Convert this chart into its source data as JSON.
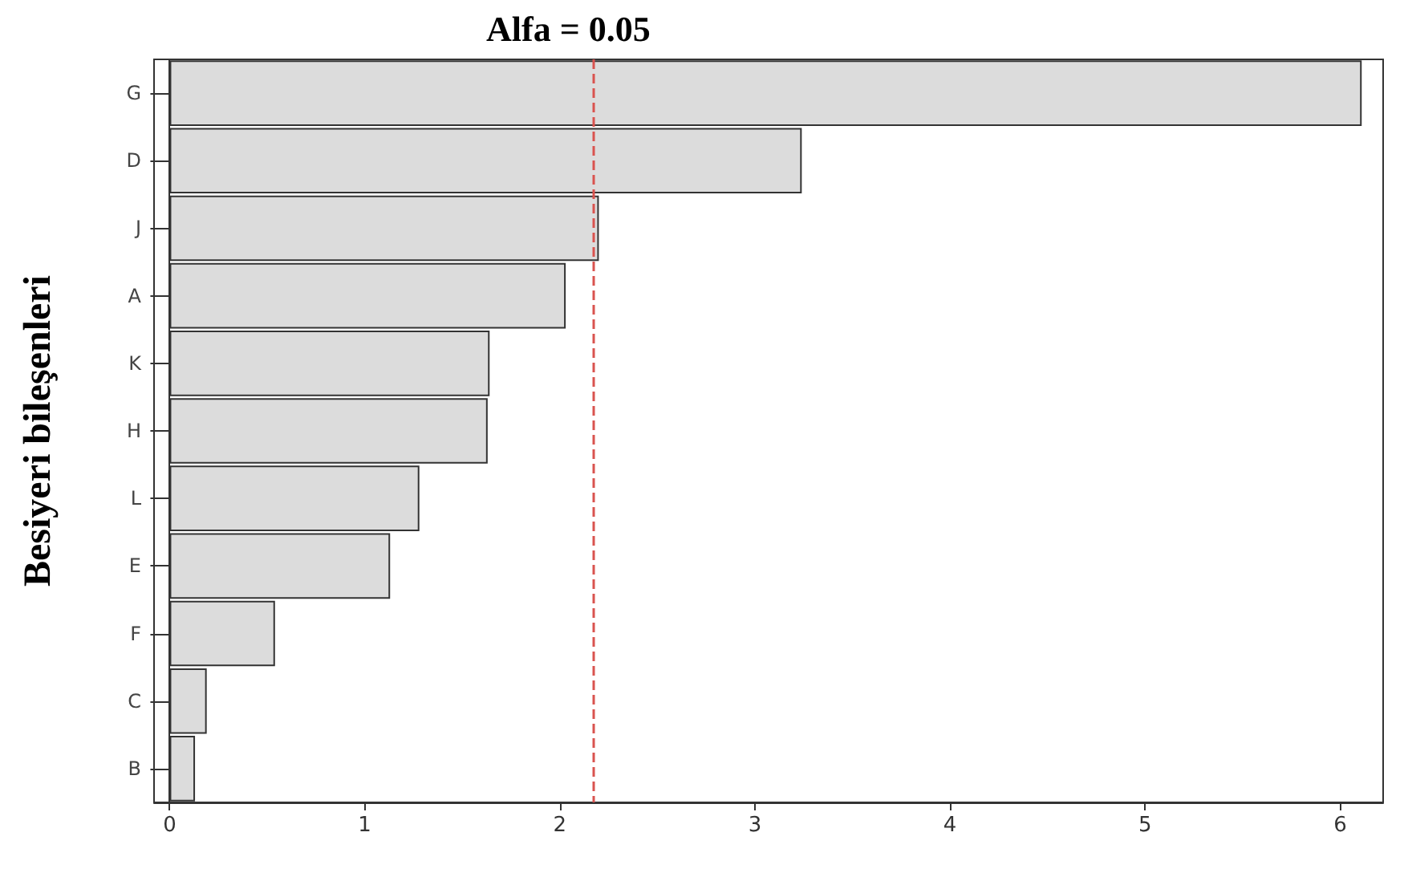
{
  "chart_data": {
    "type": "bar",
    "orientation": "horizontal",
    "title": "Alfa = 0.05",
    "ylabel": "Besiyeri bileşenleri",
    "categories": [
      "G",
      "D",
      "J",
      "A",
      "K",
      "H",
      "L",
      "E",
      "F",
      "C",
      "B"
    ],
    "values": [
      6.11,
      3.24,
      2.2,
      2.03,
      1.64,
      1.63,
      1.28,
      1.13,
      0.54,
      0.19,
      0.13
    ],
    "color": "#dcdcdc",
    "xlim": [
      -0.08,
      6.22
    ],
    "xticks": [
      0,
      1,
      2,
      3,
      4,
      5,
      6
    ],
    "ref_lines": [
      {
        "axis": "x",
        "value": 2.17,
        "color": "#d9534f",
        "line_style": "dashed"
      }
    ]
  }
}
